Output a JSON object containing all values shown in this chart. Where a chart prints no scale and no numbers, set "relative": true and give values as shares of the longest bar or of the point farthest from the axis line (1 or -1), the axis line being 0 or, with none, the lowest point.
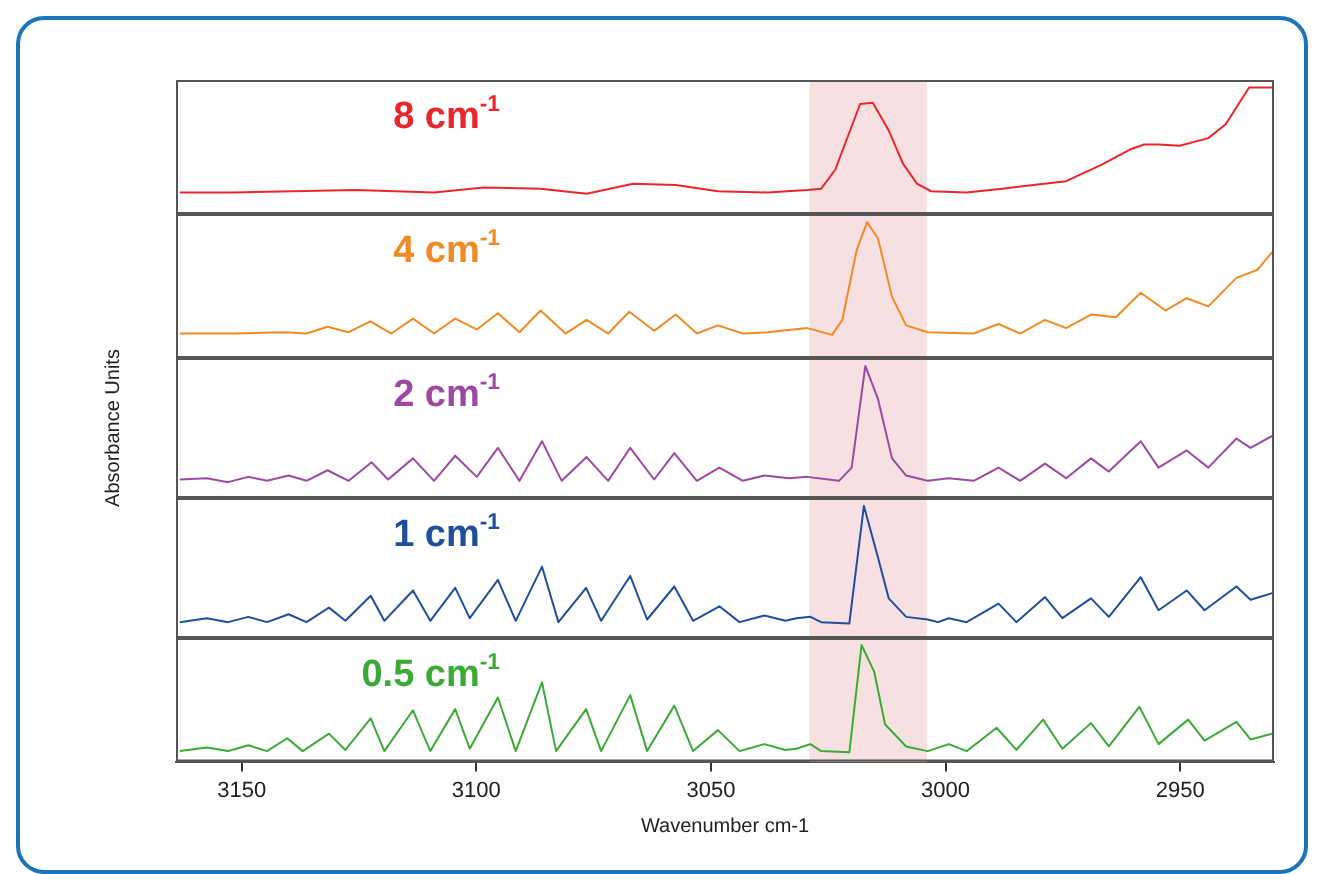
{
  "chart_data": [
    {
      "type": "line",
      "relative": true,
      "xlim": [
        3164,
        2930
      ],
      "tick_labels": false,
      "bands": [
        {
          "axis": "x",
          "from": 3029,
          "to": 3004,
          "color": "#f7e0e2"
        }
      ],
      "x": [
        3163.2,
        3151.4,
        3125.6,
        3109.0,
        3098.4,
        3086.3,
        3076.5,
        3066.6,
        3057.5,
        3048.5,
        3037.9,
        3029.5,
        3026.5,
        3023.5,
        3018.2,
        3015.5,
        3012.1,
        3009.1,
        3006.1,
        3003.1,
        2995.5,
        2987.9,
        2974.3,
        2966.7,
        2960.7,
        2957.7,
        2954.6,
        2950.1,
        2944.0,
        2940.3,
        2935.3,
        2930.4
      ],
      "series": [
        {
          "name": "8 cm$^{-1}$",
          "color": "#e8262b",
          "values": [
            0.17,
            0.17,
            0.19,
            0.17,
            0.21,
            0.2,
            0.16,
            0.24,
            0.23,
            0.18,
            0.17,
            0.19,
            0.2,
            0.35,
            0.87,
            0.88,
            0.66,
            0.4,
            0.24,
            0.18,
            0.17,
            0.2,
            0.26,
            0.39,
            0.51,
            0.55,
            0.55,
            0.54,
            0.6,
            0.71,
            1,
            1
          ]
        }
      ]
    },
    {
      "type": "line",
      "relative": true,
      "xlim": [
        3164,
        2930
      ],
      "tick_labels": false,
      "bands": [
        {
          "axis": "x",
          "from": 3029,
          "to": 3004,
          "color": "#f7e0e2"
        }
      ],
      "x": [
        3163.2,
        3151.4,
        3140.8,
        3136.2,
        3131.7,
        3127.2,
        3122.6,
        3118.1,
        3113.5,
        3109.0,
        3104.5,
        3099.9,
        3095.4,
        3090.8,
        3086.3,
        3081.0,
        3076.5,
        3071.9,
        3067.4,
        3062.1,
        3057.5,
        3053.0,
        3048.5,
        3043.2,
        3037.9,
        3029.5,
        3024.2,
        3022.0,
        3018.9,
        3016.7,
        3014.4,
        3011.4,
        3008.4,
        3003.8,
        2994.0,
        2988.7,
        2984.1,
        2978.8,
        2974.3,
        2969.0,
        2963.7,
        2958.4,
        2953.1,
        2948.6,
        2944.0,
        2938.0,
        2933.5,
        2930.4
      ],
      "series": [
        {
          "name": "4 cm$^{-1}$",
          "color": "#f08a24",
          "values": [
            0.18,
            0.18,
            0.19,
            0.18,
            0.23,
            0.19,
            0.27,
            0.18,
            0.29,
            0.18,
            0.29,
            0.21,
            0.33,
            0.19,
            0.35,
            0.18,
            0.28,
            0.18,
            0.34,
            0.2,
            0.32,
            0.18,
            0.24,
            0.18,
            0.19,
            0.22,
            0.17,
            0.28,
            0.8,
            1,
            0.88,
            0.45,
            0.24,
            0.19,
            0.18,
            0.25,
            0.18,
            0.28,
            0.22,
            0.32,
            0.3,
            0.48,
            0.35,
            0.44,
            0.38,
            0.59,
            0.65,
            0.78
          ]
        }
      ]
    },
    {
      "type": "line",
      "relative": true,
      "xlim": [
        3164,
        2930
      ],
      "tick_labels": false,
      "ylabel": "Absorbance Units",
      "bands": [
        {
          "axis": "x",
          "from": 3029,
          "to": 3004,
          "color": "#f7e0e2"
        }
      ],
      "x": [
        3163.2,
        3157.4,
        3152.9,
        3148.6,
        3144.6,
        3140.0,
        3136.2,
        3131.7,
        3127.2,
        3122.3,
        3118.8,
        3113.5,
        3109.0,
        3104.5,
        3099.9,
        3095.4,
        3090.8,
        3086.0,
        3081.8,
        3076.5,
        3071.9,
        3067.2,
        3062.1,
        3057.8,
        3053.0,
        3048.2,
        3043.2,
        3038.6,
        3033.3,
        3029.5,
        3022.7,
        3020.0,
        3017.1,
        3014.4,
        3011.4,
        3008.4,
        3003.8,
        2999.3,
        2994.0,
        2988.7,
        2984.1,
        2978.8,
        2974.3,
        2969.0,
        2965.2,
        2958.4,
        2954.6,
        2948.6,
        2944.0,
        2938.0,
        2935.0,
        2930.4
      ],
      "series": [
        {
          "name": "2 cm$^{-1}$",
          "color": "#9b4a9f",
          "values": [
            0.14,
            0.15,
            0.12,
            0.16,
            0.13,
            0.17,
            0.13,
            0.21,
            0.13,
            0.27,
            0.14,
            0.3,
            0.13,
            0.32,
            0.16,
            0.38,
            0.13,
            0.43,
            0.13,
            0.31,
            0.13,
            0.38,
            0.14,
            0.34,
            0.13,
            0.23,
            0.13,
            0.17,
            0.15,
            0.16,
            0.13,
            0.23,
            1,
            0.75,
            0.3,
            0.17,
            0.13,
            0.15,
            0.13,
            0.23,
            0.13,
            0.26,
            0.15,
            0.3,
            0.2,
            0.43,
            0.23,
            0.36,
            0.23,
            0.45,
            0.38,
            0.47
          ]
        }
      ]
    },
    {
      "type": "line",
      "relative": true,
      "xlim": [
        3164,
        2930
      ],
      "tick_labels": false,
      "bands": [
        {
          "axis": "x",
          "from": 3029,
          "to": 3004,
          "color": "#f7e0e2"
        }
      ],
      "x": [
        3163.2,
        3157.4,
        3152.9,
        3148.6,
        3144.6,
        3140.0,
        3136.2,
        3131.4,
        3127.9,
        3122.5,
        3119.6,
        3113.5,
        3109.8,
        3104.5,
        3101.4,
        3095.4,
        3091.6,
        3086.0,
        3082.5,
        3076.6,
        3073.4,
        3067.2,
        3063.6,
        3057.8,
        3053.8,
        3048.2,
        3043.9,
        3038.6,
        3034.1,
        3031.8,
        3028.8,
        3026.5,
        3020.5,
        3017.4,
        3014.4,
        3012.1,
        3008.4,
        3003.8,
        3001.6,
        2999.3,
        2995.5,
        2988.7,
        2984.9,
        2978.8,
        2975.1,
        2969.0,
        2965.2,
        2958.4,
        2954.6,
        2948.6,
        2944.8,
        2938.0,
        2935.0,
        2930.4
      ],
      "series": [
        {
          "name": "1 cm$^{-1}$",
          "color": "#1f4e9c",
          "values": [
            0.12,
            0.15,
            0.12,
            0.16,
            0.12,
            0.18,
            0.12,
            0.23,
            0.13,
            0.32,
            0.13,
            0.36,
            0.13,
            0.38,
            0.15,
            0.44,
            0.13,
            0.54,
            0.12,
            0.38,
            0.13,
            0.47,
            0.14,
            0.39,
            0.13,
            0.24,
            0.12,
            0.17,
            0.13,
            0.15,
            0.16,
            0.12,
            0.11,
            1,
            0.61,
            0.3,
            0.16,
            0.14,
            0.12,
            0.15,
            0.12,
            0.26,
            0.12,
            0.31,
            0.15,
            0.3,
            0.16,
            0.46,
            0.21,
            0.36,
            0.21,
            0.39,
            0.29,
            0.34
          ]
        }
      ]
    },
    {
      "type": "line",
      "relative": true,
      "xlim": [
        3164,
        2930
      ],
      "tick_labels": "x",
      "xlabel": "Wavenumber cm-1",
      "xticks": [
        3150,
        3100,
        3050,
        3000,
        2950
      ],
      "bands": [
        {
          "axis": "x",
          "from": 3029,
          "to": 3004,
          "color": "#f7e0e2"
        }
      ],
      "x": [
        3163.2,
        3157.4,
        3152.9,
        3148.6,
        3144.6,
        3140.3,
        3137.0,
        3131.4,
        3127.9,
        3122.5,
        3119.6,
        3113.5,
        3109.8,
        3104.5,
        3101.4,
        3095.4,
        3091.6,
        3086.0,
        3083.0,
        3076.6,
        3073.4,
        3067.2,
        3063.6,
        3057.8,
        3053.8,
        3048.5,
        3043.9,
        3038.6,
        3034.1,
        3031.8,
        3028.8,
        3026.5,
        3020.5,
        3017.9,
        3015.2,
        3012.9,
        3008.4,
        3003.8,
        2999.3,
        2995.5,
        2989.1,
        2984.9,
        2979.2,
        2975.1,
        2969.0,
        2965.2,
        2958.7,
        2954.6,
        2948.3,
        2944.8,
        2938.0,
        2935.0,
        2930.4
      ],
      "series": [
        {
          "name": "0.5 cm$^{-1}$",
          "color": "#3aaa35",
          "values": [
            0.09,
            0.12,
            0.09,
            0.14,
            0.09,
            0.2,
            0.09,
            0.24,
            0.1,
            0.37,
            0.09,
            0.44,
            0.09,
            0.45,
            0.11,
            0.55,
            0.09,
            0.68,
            0.09,
            0.45,
            0.09,
            0.57,
            0.09,
            0.48,
            0.09,
            0.27,
            0.09,
            0.15,
            0.1,
            0.11,
            0.15,
            0.09,
            0.08,
            1,
            0.77,
            0.32,
            0.13,
            0.09,
            0.15,
            0.09,
            0.29,
            0.1,
            0.36,
            0.11,
            0.33,
            0.13,
            0.47,
            0.15,
            0.36,
            0.18,
            0.34,
            0.19,
            0.24
          ]
        }
      ]
    }
  ]
}
